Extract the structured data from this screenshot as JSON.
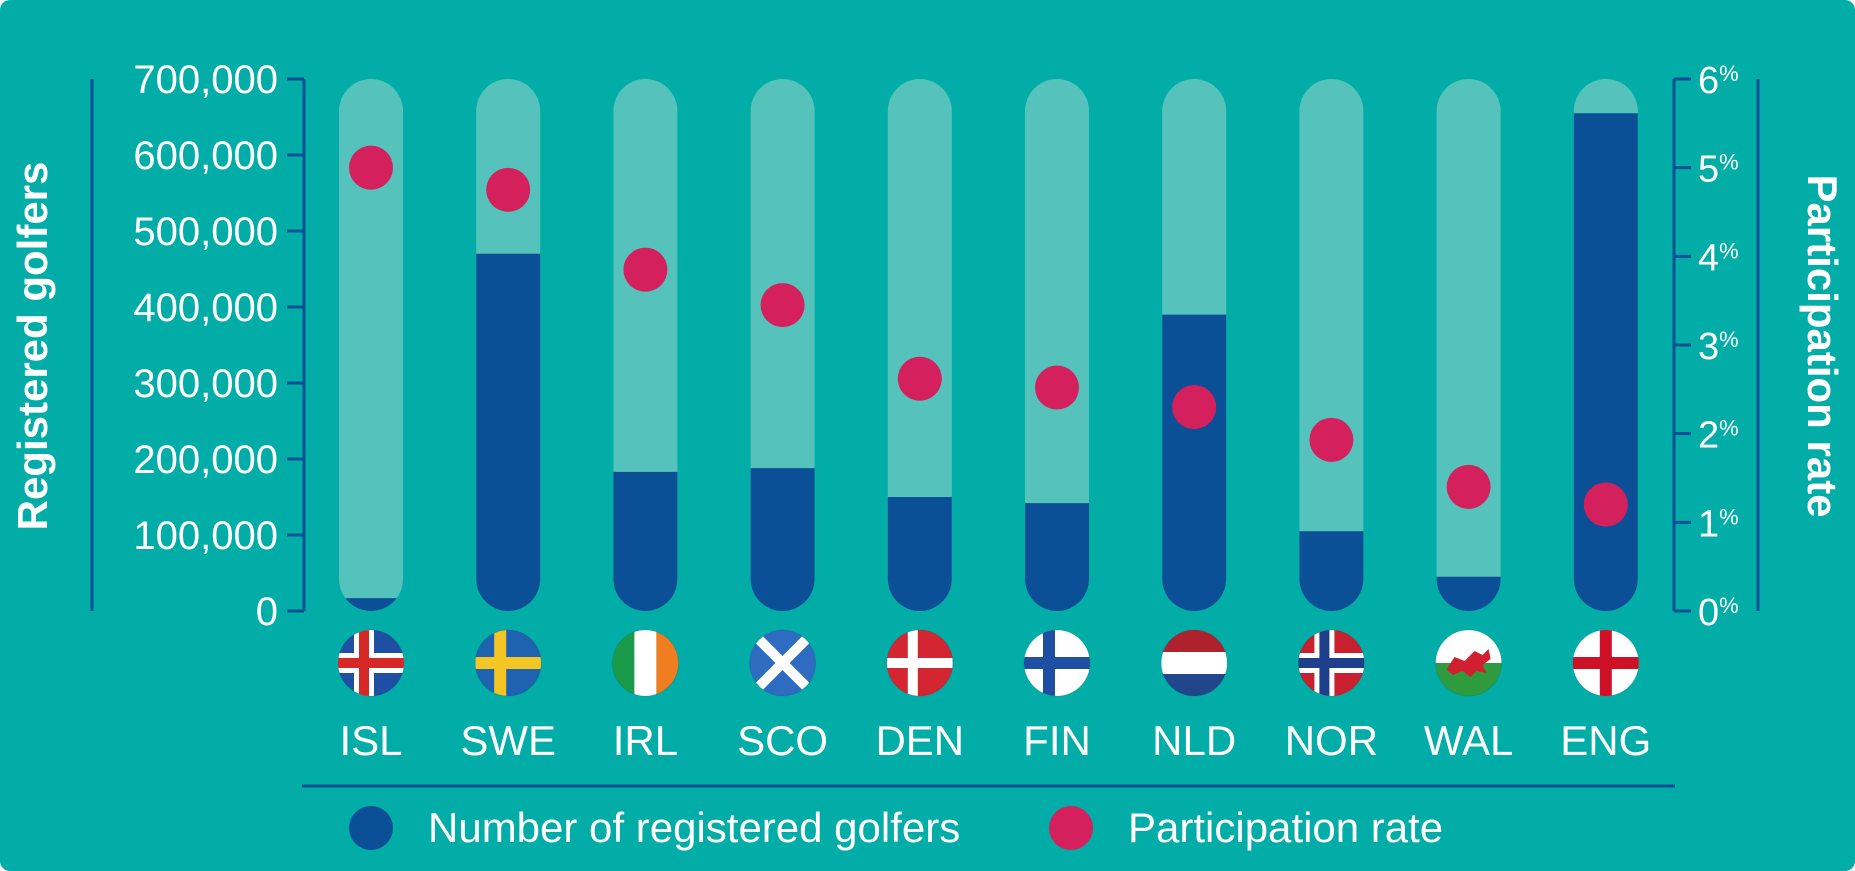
{
  "colors": {
    "background": "#01ADA6",
    "track": "#55C2BC",
    "bar": "#0B4F97",
    "dot": "#D4215E",
    "axis": "#0B4F97",
    "text": "#FFFFFF"
  },
  "chart_data": {
    "type": "bar",
    "categories": [
      "ISL",
      "SWE",
      "IRL",
      "SCO",
      "DEN",
      "FIN",
      "NLD",
      "NOR",
      "WAL",
      "ENG"
    ],
    "flags": [
      "iceland-flag",
      "sweden-flag",
      "ireland-flag",
      "scotland-flag",
      "denmark-flag",
      "finland-flag",
      "netherlands-flag",
      "norway-flag",
      "wales-flag",
      "england-flag"
    ],
    "series": [
      {
        "name": "Number of registered golfers",
        "axis": "left",
        "type": "bar",
        "values": [
          17000,
          470000,
          183000,
          188000,
          150000,
          142000,
          390000,
          105000,
          45000,
          655000
        ]
      },
      {
        "name": "Participation rate",
        "axis": "right",
        "type": "scatter",
        "values": [
          5.0,
          4.75,
          3.85,
          3.45,
          2.62,
          2.52,
          2.3,
          1.93,
          1.4,
          1.2
        ]
      }
    ],
    "ylabel": "Registered golfers",
    "y2label": "Participation rate",
    "ylim": [
      0,
      700000
    ],
    "y2lim": [
      0,
      6
    ],
    "yticks": [
      "0",
      "100,000",
      "200,000",
      "300,000",
      "400,000",
      "500,000",
      "600,000",
      "700,000"
    ],
    "y2ticks": [
      "0",
      "1",
      "2",
      "3",
      "4",
      "5",
      "6"
    ],
    "y2tick_suffix": "%",
    "legend_position": "bottom"
  }
}
